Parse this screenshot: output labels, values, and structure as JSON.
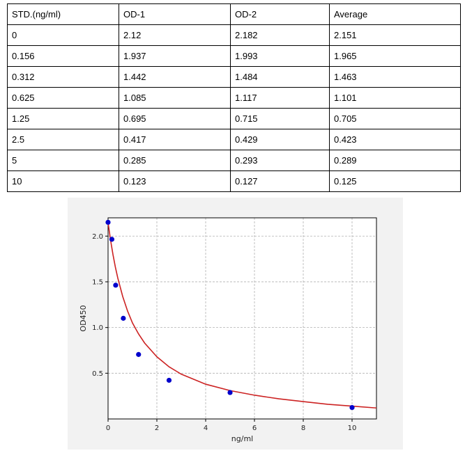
{
  "table": {
    "headers": [
      "STD.(ng/ml)",
      "OD-1",
      "OD-2",
      "Average"
    ],
    "rows": [
      [
        "0",
        "2.12",
        "2.182",
        "2.151"
      ],
      [
        "0.156",
        "1.937",
        "1.993",
        "1.965"
      ],
      [
        "0.312",
        "1.442",
        "1.484",
        "1.463"
      ],
      [
        "0.625",
        "1.085",
        "1.117",
        "1.101"
      ],
      [
        "1.25",
        "0.695",
        "0.715",
        "0.705"
      ],
      [
        "2.5",
        "0.417",
        "0.429",
        "0.423"
      ],
      [
        "5",
        "0.285",
        "0.293",
        "0.289"
      ],
      [
        "10",
        "0.123",
        "0.127",
        "0.125"
      ]
    ]
  },
  "chart_data": {
    "type": "scatter",
    "title": "",
    "xlabel": "ng/ml",
    "ylabel": "OD450",
    "xlim": [
      0,
      11
    ],
    "ylim": [
      0,
      2.2
    ],
    "xticks": [
      0,
      2,
      4,
      6,
      8,
      10
    ],
    "xtick_labels": [
      "0",
      "2",
      "4",
      "6",
      "8",
      "10"
    ],
    "yticks": [
      0.5,
      1.0,
      1.5,
      2.0
    ],
    "ytick_labels": [
      "0.5",
      "1.0",
      "1.5",
      "2.0"
    ],
    "grid": true,
    "legend": "none",
    "series": [
      {
        "x": [
          0,
          0.156,
          0.312,
          0.625,
          1.25,
          2.5,
          5,
          10
        ],
        "y": [
          2.151,
          1.965,
          1.463,
          1.101,
          0.705,
          0.423,
          0.289,
          0.125
        ],
        "color": "#0000cc"
      }
    ],
    "fit_curve": {
      "color": "#cc2222",
      "x": [
        0,
        0.1,
        0.2,
        0.3,
        0.4,
        0.6,
        0.8,
        1.0,
        1.25,
        1.5,
        2.0,
        2.5,
        3.0,
        4.0,
        5.0,
        6.0,
        7.0,
        8.0,
        9.0,
        10.0,
        11.0
      ],
      "y": [
        2.15,
        1.96,
        1.8,
        1.66,
        1.54,
        1.34,
        1.18,
        1.05,
        0.93,
        0.83,
        0.68,
        0.57,
        0.49,
        0.38,
        0.31,
        0.26,
        0.22,
        0.19,
        0.16,
        0.14,
        0.12
      ]
    }
  }
}
